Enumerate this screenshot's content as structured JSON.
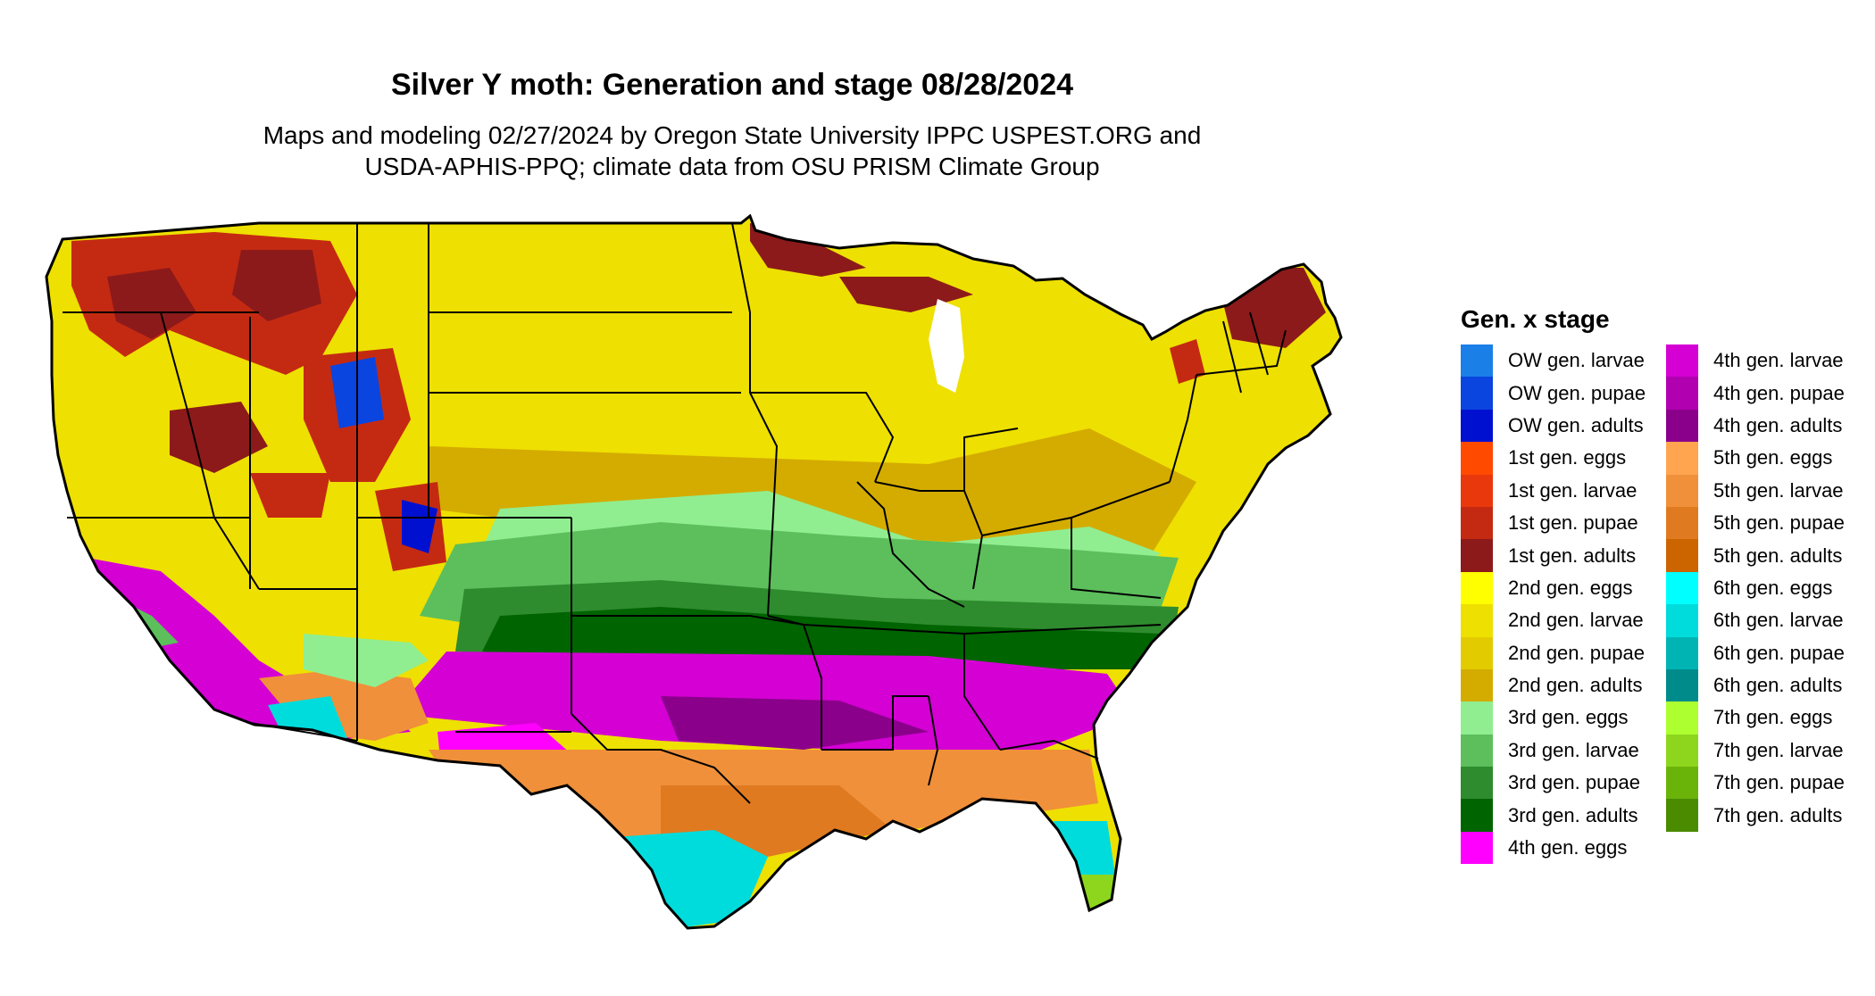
{
  "title": "Silver Y moth: Generation and stage 08/28/2024",
  "subtitle_lines": [
    "Maps and modeling 02/27/2024 by Oregon State University IPPC USPEST.ORG and",
    "USDA-APHIS-PPQ; climate data from OSU PRISM Climate Group"
  ],
  "legend": {
    "title": "Gen. x stage",
    "column1": [
      {
        "label": "OW gen. larvae",
        "color": "#1B7FE8"
      },
      {
        "label": "OW gen. pupae",
        "color": "#0A45E0"
      },
      {
        "label": "OW gen. adults",
        "color": "#0010D0"
      },
      {
        "label": "1st gen. eggs",
        "color": "#FF4A00"
      },
      {
        "label": "1st gen. larvae",
        "color": "#E8380C"
      },
      {
        "label": "1st gen. pupae",
        "color": "#C42A12"
      },
      {
        "label": "1st gen. adults",
        "color": "#8C1A1A"
      },
      {
        "label": "2nd gen. eggs",
        "color": "#FFFF00"
      },
      {
        "label": "2nd gen. larvae",
        "color": "#EEE000"
      },
      {
        "label": "2nd gen. pupae",
        "color": "#E2CC00"
      },
      {
        "label": "2nd gen. adults",
        "color": "#D4AC00"
      },
      {
        "label": "3rd gen. eggs",
        "color": "#90EE90"
      },
      {
        "label": "3rd gen. larvae",
        "color": "#5CBF5C"
      },
      {
        "label": "3rd gen. pupae",
        "color": "#2E8B2E"
      },
      {
        "label": "3rd gen. adults",
        "color": "#006400"
      },
      {
        "label": "4th gen. eggs",
        "color": "#FF00FF"
      }
    ],
    "column2": [
      {
        "label": "4th gen. larvae",
        "color": "#D400D4"
      },
      {
        "label": "4th gen. pupae",
        "color": "#B000B0"
      },
      {
        "label": "4th gen. adults",
        "color": "#8B008B"
      },
      {
        "label": "5th gen. eggs",
        "color": "#FFA550"
      },
      {
        "label": "5th gen. larvae",
        "color": "#F0903A"
      },
      {
        "label": "5th gen. pupae",
        "color": "#E07A20"
      },
      {
        "label": "5th gen. adults",
        "color": "#CC6400"
      },
      {
        "label": "6th gen. eggs",
        "color": "#00FFFF"
      },
      {
        "label": "6th gen. larvae",
        "color": "#00DCDC"
      },
      {
        "label": "6th gen. pupae",
        "color": "#00B4B4"
      },
      {
        "label": "6th gen. adults",
        "color": "#008B8B"
      },
      {
        "label": "7th gen. eggs",
        "color": "#ADFF2F"
      },
      {
        "label": "7th gen. larvae",
        "color": "#8ED61E"
      },
      {
        "label": "7th gen. pupae",
        "color": "#6AB40A"
      },
      {
        "label": "7th gen. adults",
        "color": "#4A8B00"
      }
    ]
  }
}
